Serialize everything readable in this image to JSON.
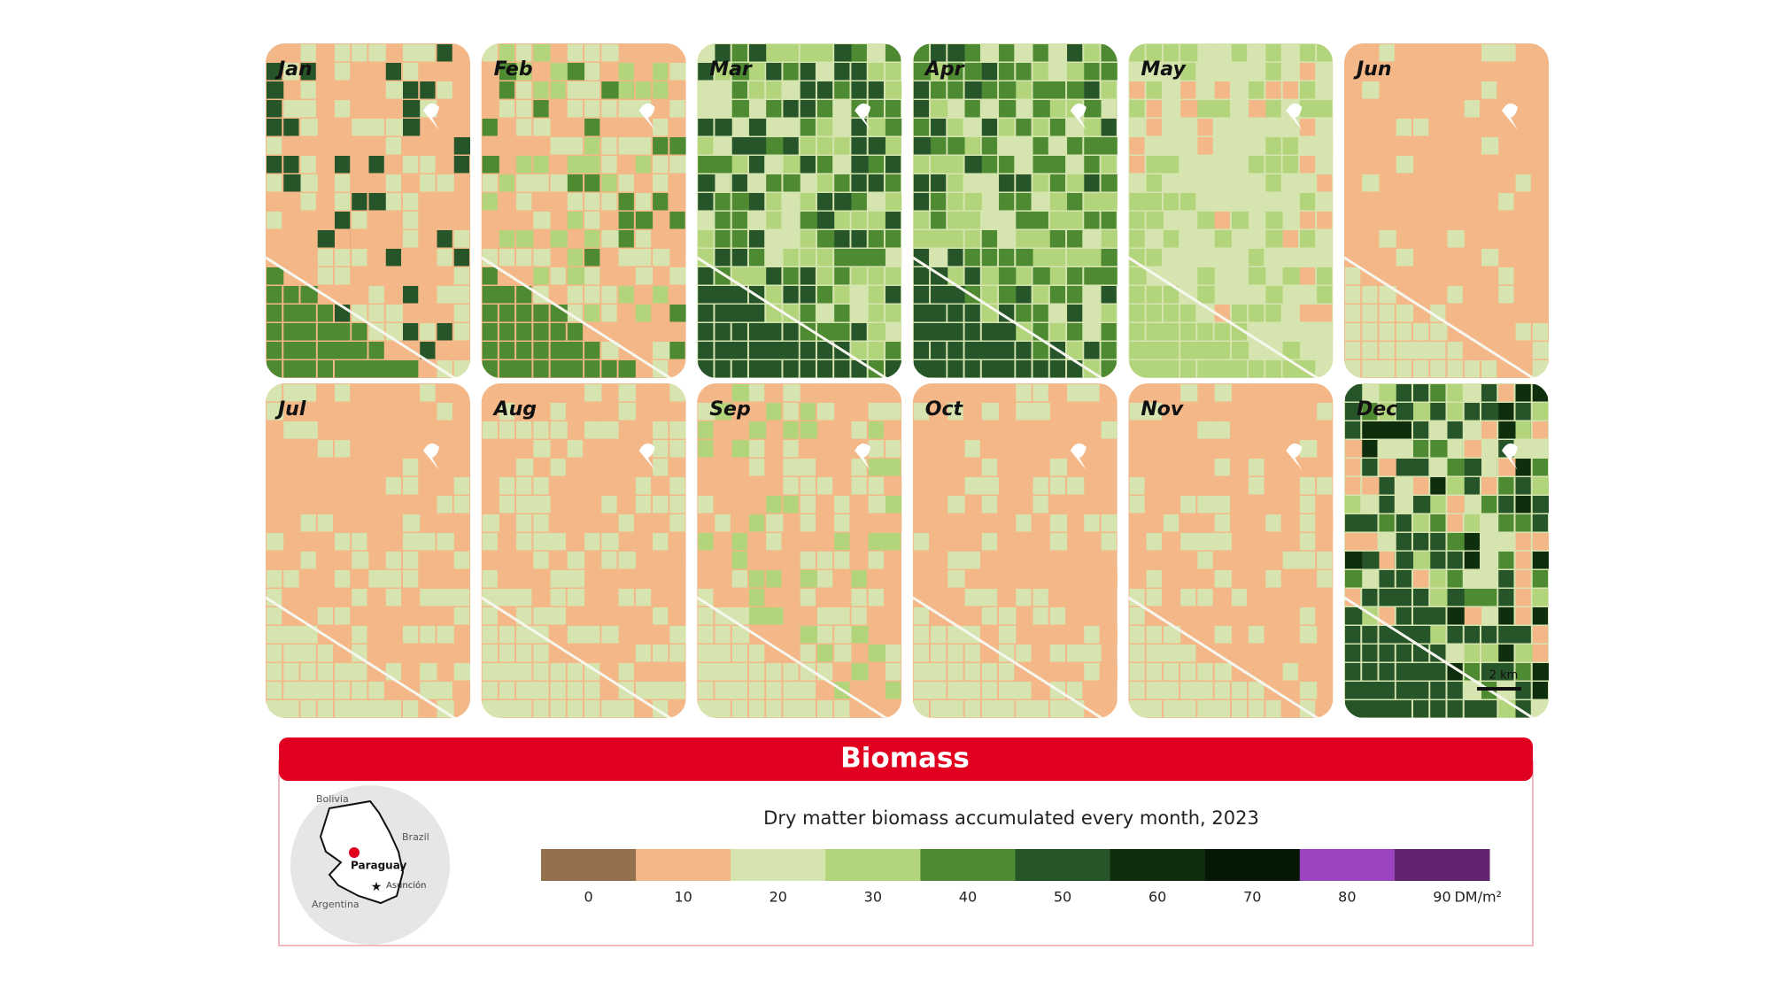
{
  "panels": [
    {
      "label": "Jan"
    },
    {
      "label": "Feb"
    },
    {
      "label": "Mar"
    },
    {
      "label": "Apr"
    },
    {
      "label": "May"
    },
    {
      "label": "Jun"
    },
    {
      "label": "Jul"
    },
    {
      "label": "Aug"
    },
    {
      "label": "Sep"
    },
    {
      "label": "Oct"
    },
    {
      "label": "Nov"
    },
    {
      "label": "Dec"
    }
  ],
  "scale_label": "2 km",
  "legend": {
    "title": "Biomass",
    "subtitle": "Dry matter biomass accumulated every month, 2023",
    "colors": [
      "#94704c",
      "#f3b788",
      "#d6e5b0",
      "#b2d47a",
      "#4e8a32",
      "#27552a",
      "#0f2e0e",
      "#051805",
      "#9c44c0",
      "#62246e"
    ],
    "ticks": [
      "0",
      "10",
      "20",
      "30",
      "40",
      "50",
      "60",
      "70",
      "80",
      "90"
    ],
    "unit": "DM/m²"
  },
  "locator": {
    "labels": [
      "Bolivia",
      "Brazil",
      "Paraguay",
      "Asunción",
      "Argentina"
    ]
  }
}
